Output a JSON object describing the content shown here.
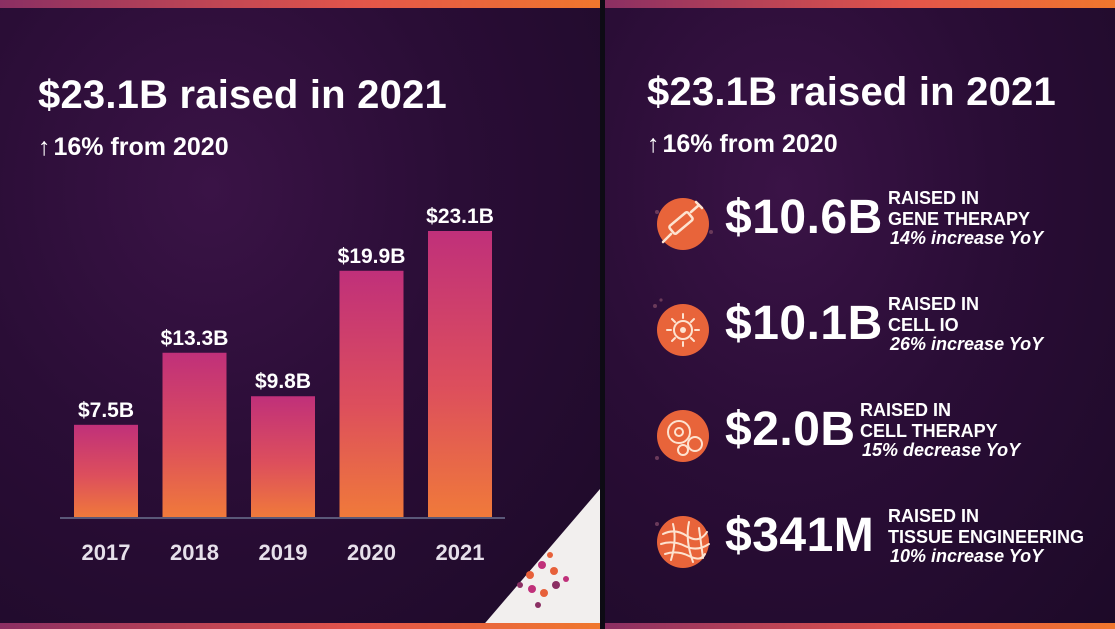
{
  "left_panel": {
    "headline": "$23.1B raised in 2021",
    "subline_arrow": "↑",
    "subline": "16% from 2020"
  },
  "chart_data": {
    "type": "bar",
    "categories": [
      "2017",
      "2018",
      "2019",
      "2020",
      "2021"
    ],
    "values": [
      7.5,
      13.3,
      9.8,
      19.9,
      23.1
    ],
    "data_labels": [
      "$7.5B",
      "$13.3B",
      "$9.8B",
      "$19.9B",
      "$23.1B"
    ],
    "title": "$23.1B raised in 2021",
    "subtitle": "↑16% from 2020",
    "xlabel": "",
    "ylabel": "",
    "ylim": [
      0,
      23.1
    ],
    "grid": false,
    "legend": "none",
    "colors": {
      "bar_top": "#c0307a",
      "bar_bottom": "#f07a3a",
      "baseline": "#5a5878"
    }
  },
  "right_panel": {
    "headline": "$23.1B raised in 2021",
    "subline_arrow": "↑",
    "subline": "16% from 2020",
    "metrics": [
      {
        "icon": "syringe-icon",
        "amount": "$10.6B",
        "line1": "RAISED IN",
        "line2": "GENE THERAPY",
        "change": "14% increase YoY"
      },
      {
        "icon": "cell-burst-icon",
        "amount": "$10.1B",
        "line1": "RAISED IN",
        "line2": "CELL IO",
        "change": "26% increase YoY"
      },
      {
        "icon": "cells-icon",
        "amount": "$2.0B",
        "line1": "RAISED IN",
        "line2": "CELL THERAPY",
        "change": "15% decrease YoY"
      },
      {
        "icon": "tissue-fibers-icon",
        "amount": "$341M",
        "line1": "RAISED IN",
        "line2": "TISSUE ENGINEERING",
        "change": "10% increase YoY"
      }
    ]
  },
  "colors": {
    "accent_orange": "#f07a3a",
    "accent_magenta": "#c0307a",
    "panel_bg": "#2a0d36"
  }
}
